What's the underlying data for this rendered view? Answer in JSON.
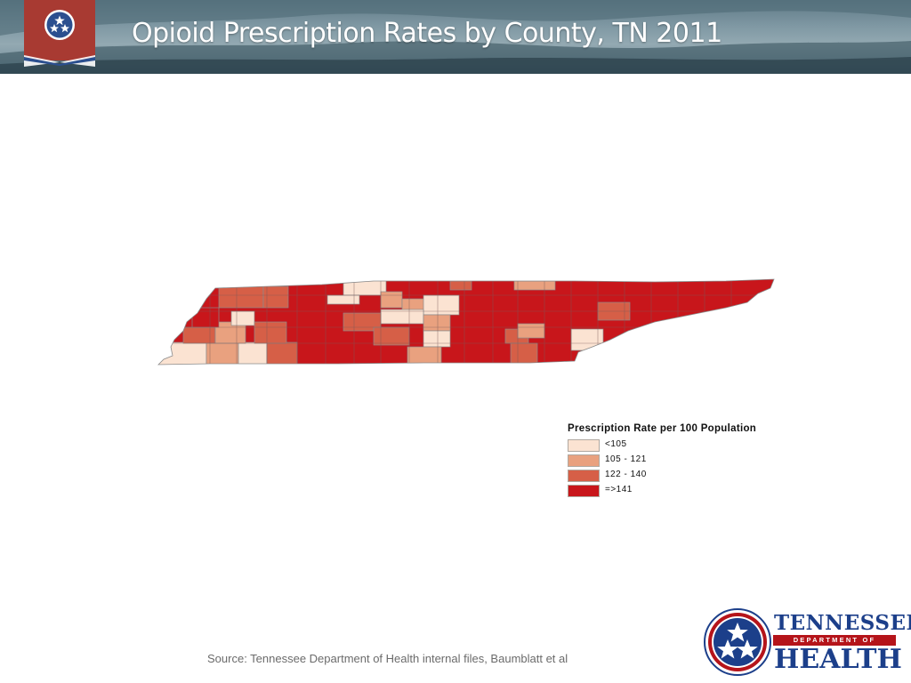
{
  "header": {
    "title": "Opioid Prescription Rates by County, TN 2011"
  },
  "legend": {
    "title": "Prescription Rate per 100 Population",
    "items": [
      {
        "label": "<105",
        "color": "#fbe3d2"
      },
      {
        "label": "105 - 121",
        "color": "#e9a17f"
      },
      {
        "label": "122 - 140",
        "color": "#d65f47"
      },
      {
        "label": "=>141",
        "color": "#c8161b"
      }
    ]
  },
  "source": {
    "text": "Source: Tennessee Department of Health internal files, Baumblatt et al"
  },
  "logo": {
    "line1": "TENNESSEE",
    "line2": "DEPARTMENT OF",
    "line3": "HEALTH"
  },
  "colors": {
    "brand_blue": "#1c3f8a",
    "brand_red": "#b5141a",
    "border": "#8a8a8a"
  }
}
